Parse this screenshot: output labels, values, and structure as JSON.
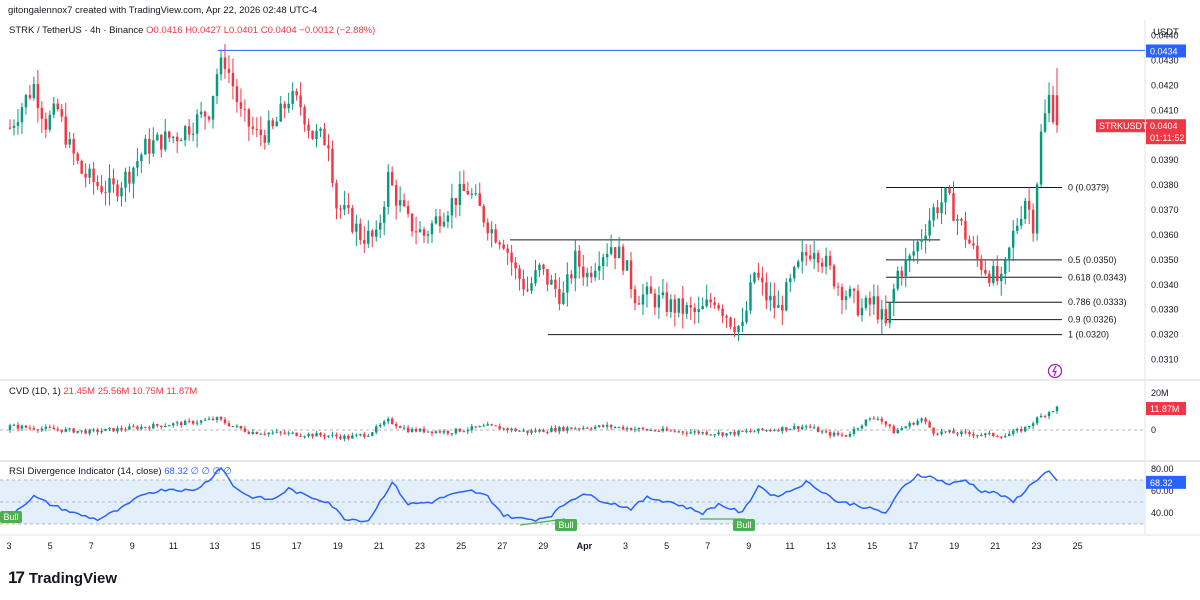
{
  "header": {
    "author_line": "gitongalennox7 created with TradingView.com, Apr 22, 2026 02:48 UTC-4"
  },
  "symbol": {
    "name": "STRK / TetherUS · 4h · Binance",
    "ohlc": "O0.0416 H0.0427 L0.0401 C0.0404 −0.0012 (−2.88%)"
  },
  "price_scale": {
    "currency": "USDT",
    "ticks": [
      "0.0440",
      "0.0430",
      "0.0420",
      "0.0410",
      "0.0390",
      "0.0380",
      "0.0370",
      "0.0360",
      "0.0350",
      "0.0340",
      "0.0330",
      "0.0320",
      "0.0310"
    ],
    "hline_label": "0.0434",
    "last_symbol": "STRKUSDT",
    "last_price": "0.0404",
    "countdown": "01:11:52"
  },
  "fib_labels": [
    "0 (0.0379)",
    "0.5 (0.0350)",
    "0.618 (0.0343)",
    "0.786 (0.0333)",
    "0.9 (0.0326)",
    "1 (0.0320)"
  ],
  "cvd": {
    "legend_name": "CVD (1D, 1)",
    "legend_values": "21.45M  25.56M  10.75M  11.87M",
    "ticks": [
      "20M",
      "0"
    ],
    "last_badge": "11.87M"
  },
  "rsi": {
    "legend_name": "RSI Divergence Indicator (14, close)",
    "legend_values": "68.32  ∅  ∅  ∅  ∅",
    "ticks": [
      "80.00",
      "60.00",
      "40.00"
    ],
    "last_badge": "68.32",
    "divergence_labels": [
      "Bull",
      "Bull",
      "Bull"
    ]
  },
  "time_axis": [
    "3",
    "5",
    "7",
    "9",
    "11",
    "13",
    "15",
    "17",
    "19",
    "21",
    "23",
    "25",
    "27",
    "29",
    "Apr",
    "3",
    "5",
    "7",
    "9",
    "11",
    "13",
    "15",
    "17",
    "19",
    "21",
    "23",
    "25"
  ],
  "footer": {
    "brand": "TradingView"
  },
  "colors": {
    "up": "#089981",
    "down": "#f23645",
    "hline": "#2962ff",
    "rsi_line": "#2962ff",
    "rsi_band": "#e3f0fc",
    "bull_badge": "#4caf50"
  },
  "chart_data": [
    {
      "type": "candlestick",
      "title": "STRK / TetherUS · 4h · Binance",
      "ylabel": "USDT",
      "ylim": [
        0.0305,
        0.0443
      ],
      "x_ticks": [
        "3",
        "5",
        "7",
        "9",
        "11",
        "13",
        "15",
        "17",
        "19",
        "21",
        "23",
        "25",
        "27",
        "29",
        "Apr",
        "3",
        "5",
        "7",
        "9",
        "11",
        "13",
        "15",
        "17",
        "19",
        "21",
        "23",
        "25"
      ],
      "horizontal_line": 0.0434,
      "fib_retracement": {
        "levels": [
          0,
          0.5,
          0.618,
          0.786,
          0.9,
          1
        ],
        "prices": [
          0.0379,
          0.035,
          0.0343,
          0.0333,
          0.0326,
          0.032
        ]
      },
      "range_box_top": 0.0358,
      "close_path": [
        [
          0,
          0.0403
        ],
        [
          3,
          0.0412
        ],
        [
          6,
          0.042
        ],
        [
          9,
          0.0405
        ],
        [
          12,
          0.041
        ],
        [
          15,
          0.0395
        ],
        [
          18,
          0.0385
        ],
        [
          22,
          0.038
        ],
        [
          26,
          0.0378
        ],
        [
          30,
          0.0385
        ],
        [
          34,
          0.0395
        ],
        [
          38,
          0.0398
        ],
        [
          42,
          0.04
        ],
        [
          46,
          0.0405
        ],
        [
          50,
          0.041
        ],
        [
          52,
          0.0425
        ],
        [
          54,
          0.043
        ],
        [
          56,
          0.042
        ],
        [
          58,
          0.0408
        ],
        [
          62,
          0.04
        ],
        [
          66,
          0.0402
        ],
        [
          70,
          0.0415
        ],
        [
          73,
          0.0412
        ],
        [
          76,
          0.04
        ],
        [
          80,
          0.0398
        ],
        [
          82,
          0.0372
        ],
        [
          86,
          0.0365
        ],
        [
          88,
          0.036
        ],
        [
          92,
          0.0358
        ],
        [
          95,
          0.0383
        ],
        [
          97,
          0.0375
        ],
        [
          100,
          0.0365
        ],
        [
          104,
          0.036
        ],
        [
          108,
          0.0368
        ],
        [
          112,
          0.0375
        ],
        [
          115,
          0.0378
        ],
        [
          118,
          0.037
        ],
        [
          121,
          0.0362
        ],
        [
          124,
          0.0358
        ],
        [
          127,
          0.0345
        ],
        [
          130,
          0.0338
        ],
        [
          133,
          0.0346
        ],
        [
          136,
          0.034
        ],
        [
          139,
          0.0335
        ],
        [
          142,
          0.035
        ],
        [
          145,
          0.0344
        ],
        [
          148,
          0.0352
        ],
        [
          151,
          0.0356
        ],
        [
          154,
          0.035
        ],
        [
          157,
          0.0336
        ],
        [
          161,
          0.0335
        ],
        [
          165,
          0.0332
        ],
        [
          169,
          0.033
        ],
        [
          173,
          0.0328
        ],
        [
          177,
          0.0335
        ],
        [
          181,
          0.0326
        ],
        [
          184,
          0.0322
        ],
        [
          187,
          0.0345
        ],
        [
          190,
          0.0335
        ],
        [
          193,
          0.033
        ],
        [
          196,
          0.034
        ],
        [
          199,
          0.035
        ],
        [
          202,
          0.0356
        ],
        [
          205,
          0.0348
        ],
        [
          208,
          0.034
        ],
        [
          211,
          0.0335
        ],
        [
          214,
          0.033
        ],
        [
          217,
          0.0333
        ],
        [
          220,
          0.0323
        ],
        [
          223,
          0.0345
        ],
        [
          226,
          0.035
        ],
        [
          229,
          0.036
        ],
        [
          232,
          0.037
        ],
        [
          235,
          0.0375
        ],
        [
          237,
          0.037
        ],
        [
          240,
          0.036
        ],
        [
          243,
          0.035
        ],
        [
          246,
          0.0345
        ],
        [
          249,
          0.034
        ],
        [
          252,
          0.036
        ],
        [
          255,
          0.0375
        ],
        [
          257,
          0.0365
        ],
        [
          259,
          0.04
        ],
        [
          261,
          0.0415
        ],
        [
          263,
          0.0404
        ]
      ]
    },
    {
      "type": "bar",
      "title": "CVD (1D, 1)",
      "ylim": [
        -5,
        25
      ],
      "unit": "M",
      "last_value": 11.87,
      "values_path": [
        [
          0,
          2
        ],
        [
          20,
          -1
        ],
        [
          40,
          3
        ],
        [
          45,
          4
        ],
        [
          52,
          6
        ],
        [
          55,
          3
        ],
        [
          60,
          -1
        ],
        [
          70,
          -2
        ],
        [
          80,
          -3
        ],
        [
          85,
          -4
        ],
        [
          90,
          -2
        ],
        [
          95,
          5
        ],
        [
          100,
          0
        ],
        [
          110,
          -1
        ],
        [
          120,
          2
        ],
        [
          130,
          -1
        ],
        [
          140,
          1
        ],
        [
          150,
          2
        ],
        [
          160,
          0
        ],
        [
          170,
          -1
        ],
        [
          180,
          -2
        ],
        [
          190,
          0
        ],
        [
          200,
          2
        ],
        [
          205,
          -2
        ],
        [
          210,
          -3
        ],
        [
          215,
          5
        ],
        [
          218,
          7
        ],
        [
          222,
          -1
        ],
        [
          226,
          3
        ],
        [
          229,
          6
        ],
        [
          232,
          -1
        ],
        [
          240,
          -2
        ],
        [
          250,
          -3
        ],
        [
          255,
          1
        ],
        [
          258,
          6
        ],
        [
          261,
          10
        ],
        [
          263,
          12
        ]
      ]
    },
    {
      "type": "line",
      "title": "RSI Divergence Indicator (14, close)",
      "ylim": [
        30,
        80
      ],
      "band": [
        30,
        70
      ],
      "last_value": 68.32,
      "values_path": [
        [
          0,
          38
        ],
        [
          6,
          55
        ],
        [
          10,
          48
        ],
        [
          16,
          40
        ],
        [
          22,
          34
        ],
        [
          28,
          44
        ],
        [
          34,
          58
        ],
        [
          40,
          62
        ],
        [
          46,
          60
        ],
        [
          50,
          70
        ],
        [
          53,
          82
        ],
        [
          56,
          65
        ],
        [
          60,
          55
        ],
        [
          66,
          52
        ],
        [
          70,
          62
        ],
        [
          74,
          56
        ],
        [
          80,
          50
        ],
        [
          84,
          35
        ],
        [
          90,
          33
        ],
        [
          96,
          68
        ],
        [
          100,
          48
        ],
        [
          106,
          50
        ],
        [
          110,
          56
        ],
        [
          116,
          60
        ],
        [
          120,
          55
        ],
        [
          124,
          38
        ],
        [
          128,
          35
        ],
        [
          132,
          34
        ],
        [
          136,
          38
        ],
        [
          140,
          50
        ],
        [
          144,
          58
        ],
        [
          148,
          52
        ],
        [
          152,
          48
        ],
        [
          156,
          44
        ],
        [
          160,
          54
        ],
        [
          166,
          50
        ],
        [
          170,
          45
        ],
        [
          174,
          40
        ],
        [
          178,
          48
        ],
        [
          184,
          40
        ],
        [
          188,
          65
        ],
        [
          192,
          55
        ],
        [
          196,
          60
        ],
        [
          200,
          68
        ],
        [
          204,
          60
        ],
        [
          208,
          50
        ],
        [
          212,
          48
        ],
        [
          216,
          44
        ],
        [
          220,
          40
        ],
        [
          224,
          62
        ],
        [
          228,
          75
        ],
        [
          232,
          72
        ],
        [
          236,
          66
        ],
        [
          240,
          70
        ],
        [
          244,
          60
        ],
        [
          248,
          58
        ],
        [
          252,
          50
        ],
        [
          256,
          64
        ],
        [
          259,
          74
        ],
        [
          261,
          78
        ],
        [
          263,
          68
        ]
      ],
      "divergence_labels": [
        "Bull",
        "Bull",
        "Bull"
      ]
    }
  ]
}
